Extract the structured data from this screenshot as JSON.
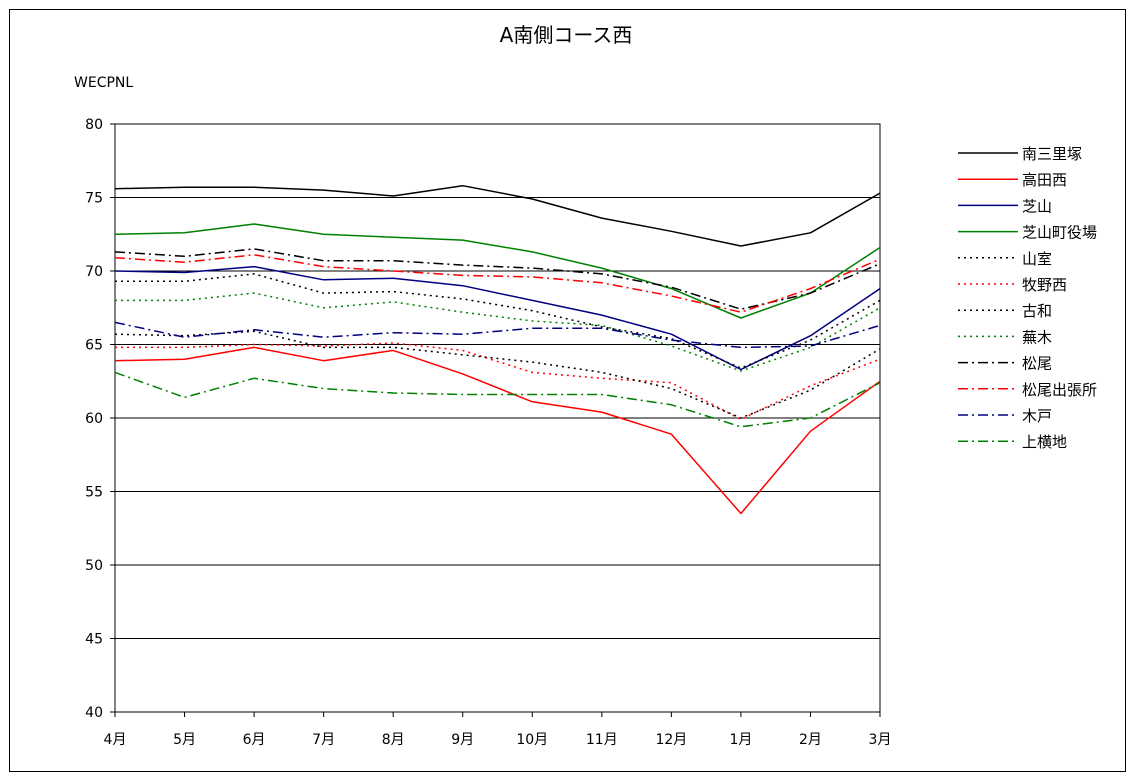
{
  "chart_data": {
    "type": "line",
    "title": "A南側コース西",
    "xlabel": "",
    "ylabel": "WECPNL",
    "ylim": [
      40,
      80
    ],
    "yticks": [
      40,
      45,
      50,
      55,
      60,
      65,
      70,
      75,
      80
    ],
    "categories": [
      "4月",
      "5月",
      "6月",
      "7月",
      "8月",
      "9月",
      "10月",
      "11月",
      "12月",
      "1月",
      "2月",
      "3月"
    ],
    "grid": "horizontal",
    "legend_position": "right",
    "series": [
      {
        "name": "南三里塚",
        "color": "#000000",
        "dash": "solid",
        "values": [
          75.6,
          75.7,
          75.7,
          75.5,
          75.1,
          75.8,
          74.9,
          73.6,
          72.7,
          71.7,
          72.6,
          75.3
        ]
      },
      {
        "name": "高田西",
        "color": "#ff0000",
        "dash": "solid",
        "values": [
          63.9,
          64.0,
          64.8,
          63.9,
          64.6,
          63.0,
          61.1,
          60.4,
          58.9,
          53.5,
          59.1,
          62.5
        ]
      },
      {
        "name": "芝山",
        "color": "#000080",
        "dash": "solid",
        "values": [
          70.0,
          69.9,
          70.3,
          69.4,
          69.5,
          69.0,
          68.0,
          67.0,
          65.7,
          63.3,
          65.6,
          68.8
        ]
      },
      {
        "name": "芝山町役場",
        "color": "#008000",
        "dash": "solid",
        "values": [
          72.5,
          72.6,
          73.2,
          72.5,
          72.3,
          72.1,
          71.3,
          70.2,
          68.8,
          66.8,
          68.5,
          71.6
        ]
      },
      {
        "name": "山室",
        "color": "#000000",
        "dash": "dot",
        "values": [
          69.3,
          69.3,
          69.8,
          68.5,
          68.6,
          68.1,
          67.3,
          66.2,
          65.4,
          63.4,
          65.3,
          68.0
        ]
      },
      {
        "name": "牧野西",
        "color": "#ff0000",
        "dash": "dot",
        "values": [
          64.8,
          64.8,
          65.0,
          64.9,
          65.1,
          64.6,
          63.1,
          62.7,
          62.4,
          59.9,
          62.2,
          64.0
        ]
      },
      {
        "name": "古和",
        "color": "#000000",
        "dash": "dot",
        "values": [
          65.7,
          65.6,
          65.9,
          64.8,
          64.8,
          64.3,
          63.8,
          63.1,
          62.0,
          60.0,
          61.9,
          64.7
        ]
      },
      {
        "name": "蕪木",
        "color": "#008000",
        "dash": "dot",
        "values": [
          68.0,
          68.0,
          68.5,
          67.5,
          67.9,
          67.2,
          66.6,
          66.3,
          64.9,
          63.2,
          64.8,
          67.5
        ]
      },
      {
        "name": "松尾",
        "color": "#000000",
        "dash": "dashdot",
        "values": [
          71.3,
          71.0,
          71.5,
          70.7,
          70.7,
          70.4,
          70.2,
          69.8,
          68.9,
          67.4,
          68.5,
          70.5
        ]
      },
      {
        "name": "松尾出張所",
        "color": "#ff0000",
        "dash": "dashdot",
        "values": [
          70.9,
          70.6,
          71.1,
          70.3,
          70.0,
          69.7,
          69.6,
          69.2,
          68.3,
          67.2,
          68.8,
          70.8
        ]
      },
      {
        "name": "木戸",
        "color": "#000080",
        "dash": "dashdot",
        "values": [
          66.5,
          65.5,
          66.0,
          65.5,
          65.8,
          65.7,
          66.1,
          66.1,
          65.3,
          64.8,
          64.9,
          66.3
        ]
      },
      {
        "name": "上横地",
        "color": "#008000",
        "dash": "dashdot",
        "values": [
          63.1,
          61.4,
          62.7,
          62.0,
          61.7,
          61.6,
          61.6,
          61.6,
          60.9,
          59.4,
          60.0,
          62.4
        ]
      }
    ]
  }
}
